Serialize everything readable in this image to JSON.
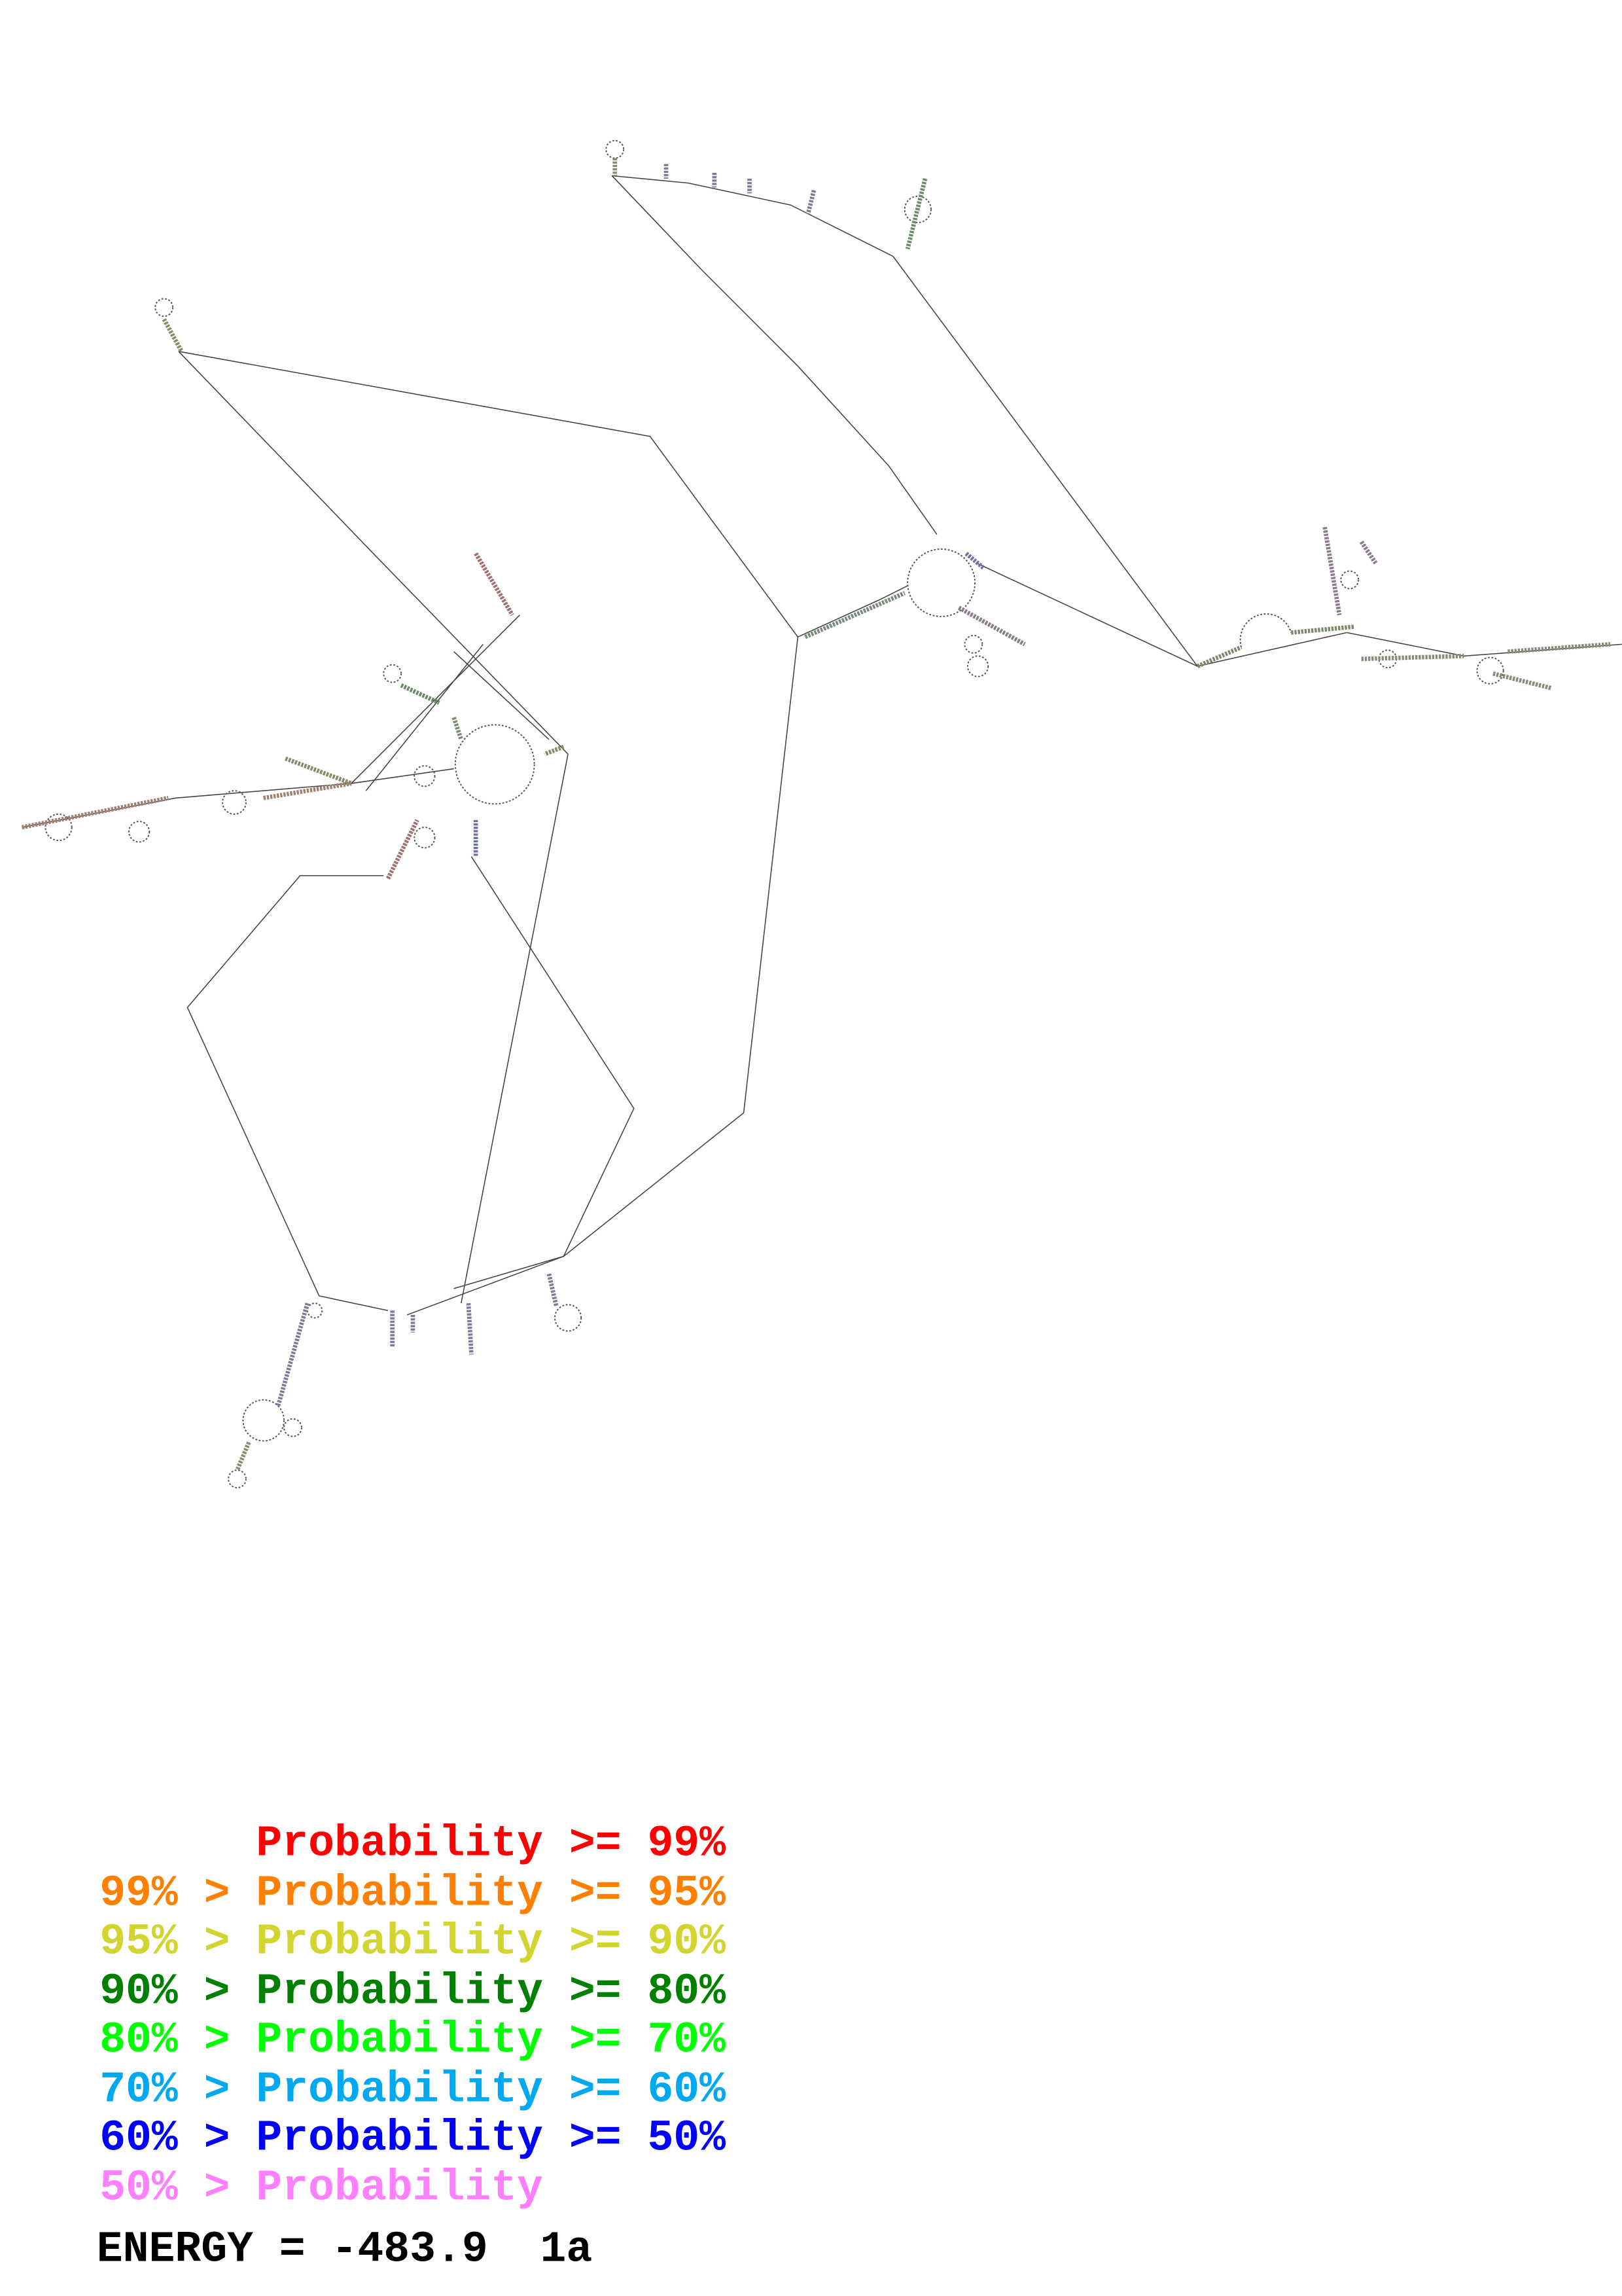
{
  "legend": {
    "lines": [
      {
        "text": "      Probability >= 99%",
        "color": "#ff0000"
      },
      {
        "text": "99% > Probability >= 95%",
        "color": "#ff8000"
      },
      {
        "text": "95% > Probability >= 90%",
        "color": "#d4d430"
      },
      {
        "text": "90% > Probability >= 80%",
        "color": "#008000"
      },
      {
        "text": "80% > Probability >= 70%",
        "color": "#00ff00"
      },
      {
        "text": "70% > Probability >= 60%",
        "color": "#00a8f0"
      },
      {
        "text": "60% > Probability >= 50%",
        "color": "#0000ff"
      },
      {
        "text": "50% > Probability",
        "color": "#ff80ff"
      }
    ],
    "energy": "ENERGY = -483.9  1a"
  }
}
